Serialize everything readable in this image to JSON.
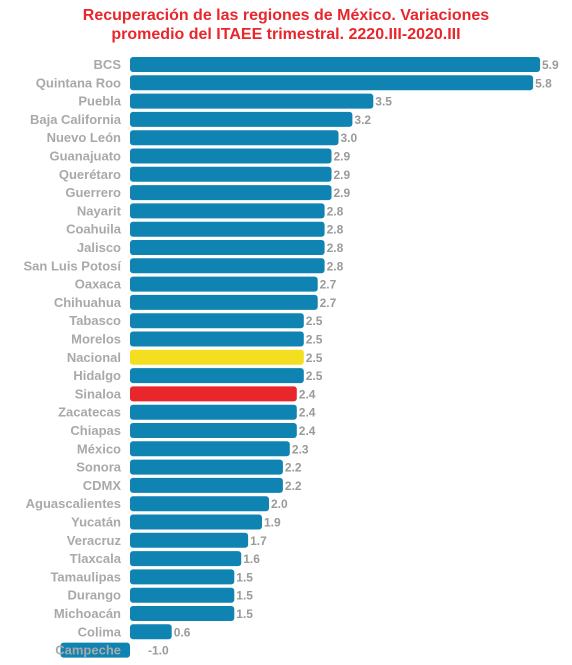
{
  "chart_data": {
    "type": "bar",
    "orientation": "horizontal",
    "title_lines": [
      "Recuperación de las regiones de México. Variaciones",
      "promedio del ITAEE trimestral. 2220.III-2020.III"
    ],
    "categories": [
      "BCS",
      "Quintana Roo",
      "Puebla",
      "Baja California",
      "Nuevo León",
      "Guanajuato",
      "Querétaro",
      "Guerrero",
      "Nayarit",
      "Coahuila",
      "Jalisco",
      "San Luis Potosí",
      "Oaxaca",
      "Chihuahua",
      "Tabasco",
      "Morelos",
      "Nacional",
      "Hidalgo",
      "Sinaloa",
      "Zacatecas",
      "Chiapas",
      "México",
      "Sonora",
      "CDMX",
      "Aguascalientes",
      "Yucatán",
      "Veracruz",
      "Tlaxcala",
      "Tamaulipas",
      "Durango",
      "Michoacán",
      "Colima",
      "Campeche"
    ],
    "values": [
      5.9,
      5.8,
      3.5,
      3.2,
      3.0,
      2.9,
      2.9,
      2.9,
      2.8,
      2.8,
      2.8,
      2.8,
      2.7,
      2.7,
      2.5,
      2.5,
      2.5,
      2.5,
      2.4,
      2.4,
      2.4,
      2.3,
      2.2,
      2.2,
      2.0,
      1.9,
      1.7,
      1.6,
      1.5,
      1.5,
      1.5,
      0.6,
      -1.0
    ],
    "value_labels": [
      "5.9",
      "5.8",
      "3.5",
      "3.2",
      "3.0",
      "2.9",
      "2.9",
      "2.9",
      "2.8",
      "2.8",
      "2.8",
      "2.8",
      "2.7",
      "2.7",
      "2.5",
      "2.5",
      "2.5",
      "2.5",
      "2.4",
      "2.4",
      "2.4",
      "2.3",
      "2.2",
      "2.2",
      "2.0",
      "1.9",
      "1.7",
      "1.6",
      "1.5",
      "1.5",
      "1.5",
      "0.6",
      "-1.0"
    ],
    "xlim": [
      -1.0,
      5.9
    ],
    "grid": false,
    "legend": "none",
    "colors": {
      "default": "#0f84b3",
      "highlight": {
        "Nacional": "#f3de1f",
        "Sinaloa": "#e8262b"
      },
      "title": "#e8262b",
      "category_text": "#a9a9a9",
      "value_text": "#9a9a9a"
    }
  }
}
